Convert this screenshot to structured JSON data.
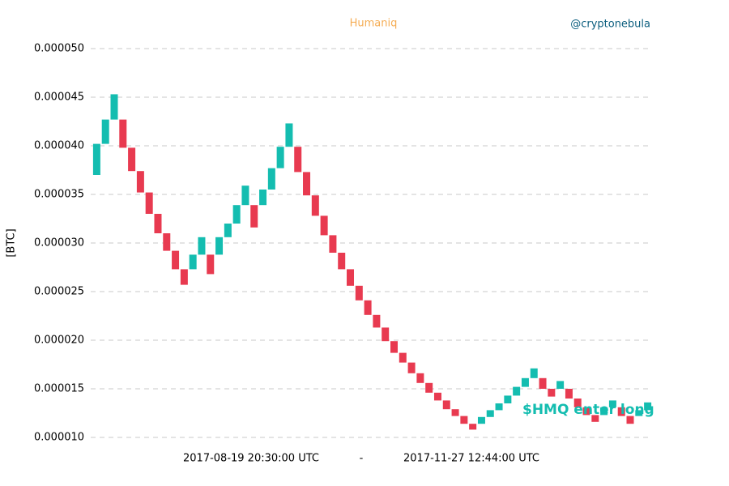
{
  "chart_data": {
    "type": "renko",
    "title": "Humaniq",
    "source": "@cryptonebula",
    "y_label": "[BTC]",
    "x_range_labels": [
      "2017-08-19 20:30:00 UTC",
      "-",
      "2017-11-27 12:44:00 UTC"
    ],
    "annotation": "$HMQ enter long",
    "up_color": "#14bdb0",
    "down_color": "#e83a50",
    "grid": true,
    "ylim": [
      1e-05,
      5e-05
    ],
    "yticks": [
      {
        "value": 1e-05,
        "label": "0.000010"
      },
      {
        "value": 1.5e-05,
        "label": "0.000015"
      },
      {
        "value": 2e-05,
        "label": "0.000020"
      },
      {
        "value": 2.5e-05,
        "label": "0.000025"
      },
      {
        "value": 3e-05,
        "label": "0.000030"
      },
      {
        "value": 3.5e-05,
        "label": "0.000035"
      },
      {
        "value": 4e-05,
        "label": "0.000040"
      },
      {
        "value": 4.5e-05,
        "label": "0.000045"
      },
      {
        "value": 5e-05,
        "label": "0.000050"
      }
    ],
    "open": [
      3.7e-05,
      4.02e-05,
      4.27e-05,
      4.27e-05,
      3.98e-05,
      3.74e-05,
      3.52e-05,
      3.3e-05,
      3.1e-05,
      2.92e-05,
      2.73e-05,
      2.73e-05,
      2.88e-05,
      2.88e-05,
      2.88e-05,
      3.06e-05,
      3.2e-05,
      3.39e-05,
      3.39e-05,
      3.39e-05,
      3.55e-05,
      3.77e-05,
      3.99e-05,
      3.99e-05,
      3.73e-05,
      3.49e-05,
      3.28e-05,
      3.08e-05,
      2.9e-05,
      2.73e-05,
      2.56e-05,
      2.41e-05,
      2.26e-05,
      2.13e-05,
      1.99e-05,
      1.87e-05,
      1.77e-05,
      1.66e-05,
      1.56e-05,
      1.46e-05,
      1.38e-05,
      1.29e-05,
      1.22e-05,
      1.14e-05,
      1.14e-05,
      1.21e-05,
      1.28e-05,
      1.35e-05,
      1.43e-05,
      1.52e-05,
      1.61e-05,
      1.61e-05,
      1.5e-05,
      1.5e-05,
      1.5e-05,
      1.4e-05,
      1.31e-05,
      1.23e-05,
      1.23e-05,
      1.31e-05,
      1.31e-05,
      1.22e-05,
      1.22e-05,
      1.28e-05
    ],
    "close": [
      4.02e-05,
      4.27e-05,
      4.53e-05,
      3.98e-05,
      3.74e-05,
      3.52e-05,
      3.3e-05,
      3.1e-05,
      2.92e-05,
      2.73e-05,
      2.57e-05,
      2.88e-05,
      3.06e-05,
      2.68e-05,
      3.06e-05,
      3.2e-05,
      3.39e-05,
      3.59e-05,
      3.16e-05,
      3.55e-05,
      3.77e-05,
      3.99e-05,
      4.23e-05,
      3.73e-05,
      3.49e-05,
      3.28e-05,
      3.08e-05,
      2.9e-05,
      2.73e-05,
      2.56e-05,
      2.41e-05,
      2.26e-05,
      2.13e-05,
      1.99e-05,
      1.87e-05,
      1.77e-05,
      1.66e-05,
      1.56e-05,
      1.46e-05,
      1.38e-05,
      1.29e-05,
      1.22e-05,
      1.14e-05,
      1.08e-05,
      1.21e-05,
      1.28e-05,
      1.35e-05,
      1.43e-05,
      1.52e-05,
      1.61e-05,
      1.71e-05,
      1.5e-05,
      1.42e-05,
      1.58e-05,
      1.4e-05,
      1.31e-05,
      1.23e-05,
      1.16e-05,
      1.31e-05,
      1.38e-05,
      1.22e-05,
      1.14e-05,
      1.28e-05,
      1.36e-05
    ]
  }
}
